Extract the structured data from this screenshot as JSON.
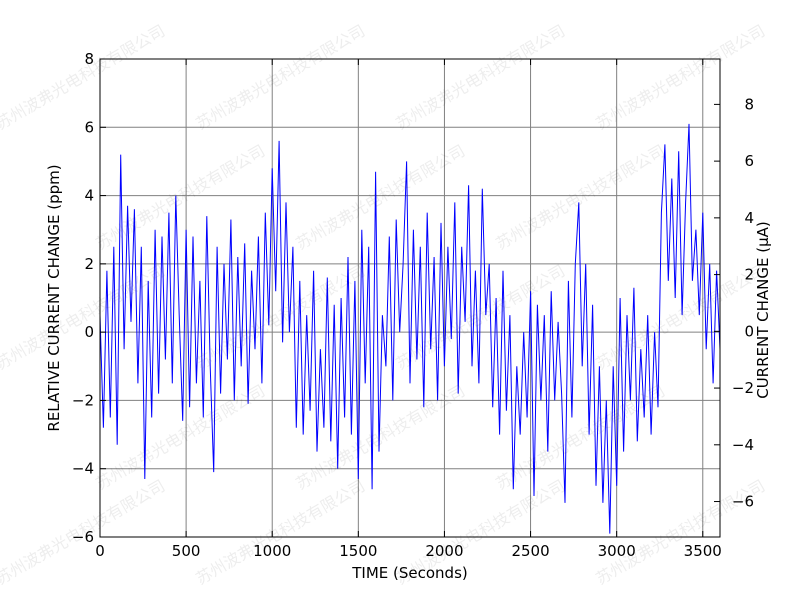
{
  "watermark": "苏州波弗光电科技有限公司",
  "chart_data": {
    "type": "line",
    "xlabel": "TIME (Seconds)",
    "ylabel": "RELATIVE CURRENT CHANGE (ppm)",
    "y2label": "CURRENT CHANGE (μA)",
    "xlim": [
      0,
      3600
    ],
    "ylim": [
      -6,
      8
    ],
    "y2lim": [
      -7.25,
      9.6
    ],
    "xticks": [
      0,
      500,
      1000,
      1500,
      2000,
      2500,
      3000,
      3500
    ],
    "yticks": [
      -6,
      -4,
      -2,
      0,
      2,
      4,
      6,
      8
    ],
    "y2ticks": [
      -6,
      -4,
      -2,
      0,
      2,
      4,
      6,
      8
    ],
    "grid": true,
    "color": "#0000ff",
    "series": [
      {
        "x": [
          0,
          20,
          40,
          60,
          80,
          100,
          120,
          140,
          160,
          180,
          200,
          220,
          240,
          260,
          280,
          300,
          320,
          340,
          360,
          380,
          400,
          420,
          440,
          460,
          480,
          500,
          520,
          540,
          560,
          580,
          600,
          620,
          640,
          660,
          680,
          700,
          720,
          740,
          760,
          780,
          800,
          820,
          840,
          860,
          880,
          900,
          920,
          940,
          960,
          980,
          1000,
          1020,
          1040,
          1060,
          1080,
          1100,
          1120,
          1140,
          1160,
          1180,
          1200,
          1220,
          1240,
          1260,
          1280,
          1300,
          1320,
          1340,
          1360,
          1380,
          1400,
          1420,
          1440,
          1460,
          1480,
          1500,
          1520,
          1540,
          1560,
          1580,
          1600,
          1620,
          1640,
          1660,
          1680,
          1700,
          1720,
          1740,
          1760,
          1780,
          1800,
          1820,
          1840,
          1860,
          1880,
          1900,
          1920,
          1940,
          1960,
          1980,
          2000,
          2020,
          2040,
          2060,
          2080,
          2100,
          2120,
          2140,
          2160,
          2180,
          2200,
          2220,
          2240,
          2260,
          2280,
          2300,
          2320,
          2340,
          2360,
          2380,
          2400,
          2420,
          2440,
          2460,
          2480,
          2500,
          2520,
          2540,
          2560,
          2580,
          2600,
          2620,
          2640,
          2660,
          2680,
          2700,
          2720,
          2740,
          2760,
          2780,
          2800,
          2820,
          2840,
          2860,
          2880,
          2900,
          2920,
          2940,
          2960,
          2980,
          3000,
          3020,
          3040,
          3060,
          3080,
          3100,
          3120,
          3140,
          3160,
          3180,
          3200,
          3220,
          3240,
          3260,
          3280,
          3300,
          3320,
          3340,
          3360,
          3380,
          3400,
          3420,
          3440,
          3460,
          3480,
          3500,
          3520,
          3540,
          3560,
          3580,
          3600
        ],
        "y": [
          0.5,
          -2.8,
          1.8,
          -2.5,
          2.5,
          -3.3,
          5.2,
          -0.5,
          3.7,
          0.3,
          3.6,
          -1.5,
          2.5,
          -4.3,
          1.5,
          -2.5,
          3.0,
          -1.8,
          2.8,
          -0.8,
          3.5,
          -1.5,
          4.0,
          0.5,
          -2.6,
          3.0,
          -2.2,
          2.8,
          -1.5,
          1.5,
          -2.5,
          3.4,
          -1.0,
          -4.1,
          2.5,
          -1.8,
          2.0,
          -0.8,
          3.3,
          -2.0,
          2.2,
          -1.0,
          2.6,
          -2.1,
          1.8,
          -0.5,
          2.8,
          -1.5,
          3.5,
          0.2,
          4.8,
          1.2,
          5.6,
          -0.3,
          3.8,
          0.0,
          2.5,
          -2.8,
          1.5,
          -3.0,
          0.5,
          -2.3,
          1.8,
          -3.5,
          -0.5,
          -2.8,
          1.6,
          -3.2,
          0.8,
          -4.0,
          1.0,
          -2.5,
          2.2,
          -3.0,
          1.5,
          -4.3,
          3.0,
          -1.5,
          2.5,
          -4.6,
          4.7,
          -3.5,
          0.5,
          -1.0,
          2.8,
          -2.0,
          3.3,
          0.0,
          2.0,
          5.0,
          -1.5,
          3.0,
          -0.8,
          2.5,
          -2.2,
          3.5,
          -0.5,
          2.2,
          -2.0,
          3.2,
          -1.0,
          2.5,
          -0.2,
          3.8,
          -1.8,
          2.5,
          0.3,
          4.3,
          -1.0,
          1.8,
          -1.5,
          4.2,
          0.5,
          2.0,
          -2.2,
          1.0,
          -3.0,
          1.8,
          -2.3,
          0.5,
          -4.6,
          -1.0,
          -3.0,
          0.0,
          -2.5,
          1.2,
          -4.8,
          0.8,
          -2.0,
          0.5,
          -3.5,
          1.2,
          -2.0,
          0.3,
          -1.8,
          -5.0,
          1.5,
          -2.5,
          2.0,
          3.8,
          -1.0,
          2.0,
          -3.0,
          0.8,
          -4.5,
          -1.0,
          -5.0,
          -2.0,
          -5.9,
          -1.0,
          -4.5,
          1.0,
          -3.5,
          0.5,
          -2.0,
          1.3,
          -3.2,
          -0.5,
          -2.5,
          0.5,
          -3.0,
          0.0,
          -2.2,
          3.5,
          5.5,
          1.5,
          4.5,
          1.0,
          5.3,
          0.5,
          3.8,
          6.1,
          1.5,
          3.0,
          0.5,
          3.5,
          -0.5,
          2.0,
          -1.5,
          1.8,
          -0.5
        ]
      }
    ]
  }
}
